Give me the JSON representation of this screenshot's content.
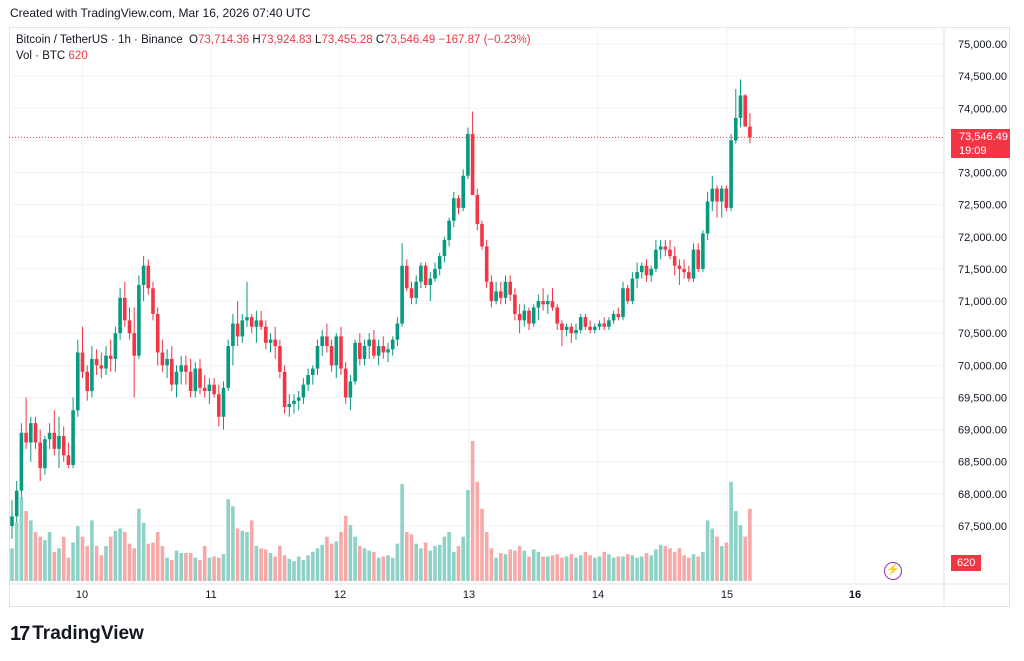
{
  "header": {
    "created_text": "Created with TradingView.com, Mar 16, 2026 07:40 UTC"
  },
  "legend": {
    "symbol": "Bitcoin / TetherUS · 1h · Binance",
    "o_label": "O",
    "o_value": "73,714.36",
    "h_label": "H",
    "h_value": "73,924.83",
    "l_label": "L",
    "l_value": "73,455.28",
    "c_label": "C",
    "c_value": "73,546.49",
    "change": "−167.87 (−0.23%)",
    "vol_label": "Vol · BTC",
    "vol_value": "620"
  },
  "price_tag": {
    "price": "73,546.49",
    "countdown": "19:09"
  },
  "volume_tag": "620",
  "brand": {
    "name": "TradingView",
    "logo": "tradingview-logo"
  },
  "colors": {
    "up": "#089981",
    "down": "#f23645",
    "up_vol": "#8ed1c7",
    "down_vol": "#f7a9a7",
    "grid": "#f0f3fa",
    "axis_text": "#131722"
  },
  "chart_data": {
    "type": "candlestick",
    "symbol": "BTCUSDT",
    "interval": "1h",
    "x_tick_labels": [
      "10",
      "11",
      "12",
      "13",
      "14",
      "15",
      "16"
    ],
    "y_tick_labels": [
      "67,500.00",
      "68,000.00",
      "68,500.00",
      "69,000.00",
      "69,500.00",
      "70,000.00",
      "70,500.00",
      "71,000.00",
      "71,500.00",
      "72,000.00",
      "72,500.00",
      "73,000.00",
      "73,500.00",
      "74,000.00",
      "74,500.00",
      "75,000.00"
    ],
    "ylim": [
      67000,
      75150
    ],
    "grid": true,
    "last_price": 73546.49,
    "ohlcv": [
      {
        "o": 67500,
        "h": 67900,
        "l": 67300,
        "c": 67650,
        "v": 280
      },
      {
        "o": 67650,
        "h": 68200,
        "l": 67550,
        "c": 68050,
        "v": 500
      },
      {
        "o": 68050,
        "h": 69100,
        "l": 67950,
        "c": 68950,
        "v": 720
      },
      {
        "o": 68950,
        "h": 69500,
        "l": 68700,
        "c": 68800,
        "v": 600
      },
      {
        "o": 68800,
        "h": 69200,
        "l": 68500,
        "c": 69100,
        "v": 520
      },
      {
        "o": 69100,
        "h": 69200,
        "l": 68700,
        "c": 68800,
        "v": 420
      },
      {
        "o": 68800,
        "h": 69000,
        "l": 68200,
        "c": 68400,
        "v": 380
      },
      {
        "o": 68400,
        "h": 68900,
        "l": 68300,
        "c": 68850,
        "v": 350
      },
      {
        "o": 68850,
        "h": 69100,
        "l": 68700,
        "c": 68950,
        "v": 420
      },
      {
        "o": 68950,
        "h": 69300,
        "l": 68600,
        "c": 68700,
        "v": 250
      },
      {
        "o": 68700,
        "h": 69200,
        "l": 68400,
        "c": 68900,
        "v": 280
      },
      {
        "o": 68900,
        "h": 69050,
        "l": 68500,
        "c": 68600,
        "v": 380
      },
      {
        "o": 68600,
        "h": 68800,
        "l": 68400,
        "c": 68450,
        "v": 200
      },
      {
        "o": 68450,
        "h": 69500,
        "l": 68400,
        "c": 69300,
        "v": 330
      },
      {
        "o": 69300,
        "h": 70400,
        "l": 69200,
        "c": 70200,
        "v": 470
      },
      {
        "o": 70200,
        "h": 70600,
        "l": 69800,
        "c": 69900,
        "v": 380
      },
      {
        "o": 69900,
        "h": 70000,
        "l": 69450,
        "c": 69600,
        "v": 300
      },
      {
        "o": 69600,
        "h": 70300,
        "l": 69500,
        "c": 70100,
        "v": 520
      },
      {
        "o": 70100,
        "h": 70250,
        "l": 69850,
        "c": 70000,
        "v": 300
      },
      {
        "o": 70000,
        "h": 70200,
        "l": 69800,
        "c": 69950,
        "v": 220
      },
      {
        "o": 69950,
        "h": 70300,
        "l": 69850,
        "c": 70150,
        "v": 300
      },
      {
        "o": 70150,
        "h": 70400,
        "l": 69900,
        "c": 70100,
        "v": 380
      },
      {
        "o": 70100,
        "h": 70600,
        "l": 69900,
        "c": 70500,
        "v": 430
      },
      {
        "o": 70500,
        "h": 71200,
        "l": 70400,
        "c": 71050,
        "v": 450
      },
      {
        "o": 71050,
        "h": 71300,
        "l": 70600,
        "c": 70700,
        "v": 420
      },
      {
        "o": 70700,
        "h": 70900,
        "l": 70400,
        "c": 70500,
        "v": 320
      },
      {
        "o": 70500,
        "h": 70900,
        "l": 69500,
        "c": 70150,
        "v": 280
      },
      {
        "o": 70150,
        "h": 71400,
        "l": 70100,
        "c": 71250,
        "v": 620
      },
      {
        "o": 71250,
        "h": 71700,
        "l": 71000,
        "c": 71550,
        "v": 500
      },
      {
        "o": 71550,
        "h": 71650,
        "l": 71100,
        "c": 71200,
        "v": 320
      },
      {
        "o": 71200,
        "h": 71300,
        "l": 70700,
        "c": 70800,
        "v": 330
      },
      {
        "o": 70800,
        "h": 70900,
        "l": 70000,
        "c": 70200,
        "v": 420
      },
      {
        "o": 70200,
        "h": 70400,
        "l": 69900,
        "c": 70000,
        "v": 300
      },
      {
        "o": 70000,
        "h": 70250,
        "l": 69800,
        "c": 70100,
        "v": 200
      },
      {
        "o": 70100,
        "h": 70300,
        "l": 69600,
        "c": 69700,
        "v": 180
      },
      {
        "o": 69700,
        "h": 70000,
        "l": 69500,
        "c": 69900,
        "v": 260
      },
      {
        "o": 69900,
        "h": 70150,
        "l": 69700,
        "c": 70000,
        "v": 240
      },
      {
        "o": 70000,
        "h": 70150,
        "l": 69700,
        "c": 69900,
        "v": 240
      },
      {
        "o": 69900,
        "h": 70100,
        "l": 69500,
        "c": 69600,
        "v": 240
      },
      {
        "o": 69600,
        "h": 70050,
        "l": 69500,
        "c": 69950,
        "v": 200
      },
      {
        "o": 69950,
        "h": 70100,
        "l": 69550,
        "c": 69650,
        "v": 180
      },
      {
        "o": 69650,
        "h": 69850,
        "l": 69500,
        "c": 69600,
        "v": 300
      },
      {
        "o": 69600,
        "h": 69800,
        "l": 69400,
        "c": 69700,
        "v": 200
      },
      {
        "o": 69700,
        "h": 69800,
        "l": 69500,
        "c": 69550,
        "v": 210
      },
      {
        "o": 69550,
        "h": 69700,
        "l": 69050,
        "c": 69200,
        "v": 200
      },
      {
        "o": 69200,
        "h": 69750,
        "l": 69000,
        "c": 69650,
        "v": 230
      },
      {
        "o": 69650,
        "h": 70400,
        "l": 69600,
        "c": 70300,
        "v": 700
      },
      {
        "o": 70300,
        "h": 70800,
        "l": 70000,
        "c": 70650,
        "v": 640
      },
      {
        "o": 70650,
        "h": 71000,
        "l": 70300,
        "c": 70450,
        "v": 450
      },
      {
        "o": 70450,
        "h": 70800,
        "l": 70350,
        "c": 70700,
        "v": 430
      },
      {
        "o": 70700,
        "h": 71300,
        "l": 70600,
        "c": 70750,
        "v": 420
      },
      {
        "o": 70750,
        "h": 70800,
        "l": 70500,
        "c": 70600,
        "v": 520
      },
      {
        "o": 70600,
        "h": 70850,
        "l": 70350,
        "c": 70700,
        "v": 300
      },
      {
        "o": 70700,
        "h": 70850,
        "l": 70550,
        "c": 70600,
        "v": 280
      },
      {
        "o": 70600,
        "h": 70700,
        "l": 70250,
        "c": 70350,
        "v": 270
      },
      {
        "o": 70350,
        "h": 70500,
        "l": 70200,
        "c": 70400,
        "v": 240
      },
      {
        "o": 70400,
        "h": 70600,
        "l": 70100,
        "c": 70300,
        "v": 210
      },
      {
        "o": 70300,
        "h": 70400,
        "l": 69800,
        "c": 69900,
        "v": 300
      },
      {
        "o": 69900,
        "h": 70000,
        "l": 69250,
        "c": 69350,
        "v": 220
      },
      {
        "o": 69350,
        "h": 69550,
        "l": 69200,
        "c": 69400,
        "v": 190
      },
      {
        "o": 69400,
        "h": 69550,
        "l": 69250,
        "c": 69450,
        "v": 170
      },
      {
        "o": 69450,
        "h": 69600,
        "l": 69300,
        "c": 69500,
        "v": 210
      },
      {
        "o": 69500,
        "h": 69800,
        "l": 69400,
        "c": 69700,
        "v": 180
      },
      {
        "o": 69700,
        "h": 69950,
        "l": 69600,
        "c": 69850,
        "v": 220
      },
      {
        "o": 69850,
        "h": 70000,
        "l": 69700,
        "c": 69950,
        "v": 250
      },
      {
        "o": 69950,
        "h": 70400,
        "l": 69850,
        "c": 70300,
        "v": 280
      },
      {
        "o": 70300,
        "h": 70550,
        "l": 70150,
        "c": 70450,
        "v": 310
      },
      {
        "o": 70450,
        "h": 70650,
        "l": 70200,
        "c": 70300,
        "v": 380
      },
      {
        "o": 70300,
        "h": 70400,
        "l": 69900,
        "c": 70000,
        "v": 320
      },
      {
        "o": 70000,
        "h": 70500,
        "l": 69800,
        "c": 70450,
        "v": 340
      },
      {
        "o": 70450,
        "h": 70600,
        "l": 69850,
        "c": 69950,
        "v": 420
      },
      {
        "o": 69950,
        "h": 70050,
        "l": 69400,
        "c": 69500,
        "v": 560
      },
      {
        "o": 69500,
        "h": 69850,
        "l": 69300,
        "c": 69750,
        "v": 480
      },
      {
        "o": 69750,
        "h": 70400,
        "l": 69700,
        "c": 70350,
        "v": 380
      },
      {
        "o": 70350,
        "h": 70500,
        "l": 70000,
        "c": 70100,
        "v": 300
      },
      {
        "o": 70100,
        "h": 70400,
        "l": 70000,
        "c": 70300,
        "v": 280
      },
      {
        "o": 70300,
        "h": 70500,
        "l": 70100,
        "c": 70400,
        "v": 260
      },
      {
        "o": 70400,
        "h": 70550,
        "l": 70100,
        "c": 70150,
        "v": 250
      },
      {
        "o": 70150,
        "h": 70400,
        "l": 70000,
        "c": 70300,
        "v": 200
      },
      {
        "o": 70300,
        "h": 70450,
        "l": 70100,
        "c": 70200,
        "v": 210
      },
      {
        "o": 70200,
        "h": 70350,
        "l": 70050,
        "c": 70250,
        "v": 220
      },
      {
        "o": 70250,
        "h": 70450,
        "l": 70150,
        "c": 70400,
        "v": 200
      },
      {
        "o": 70400,
        "h": 70750,
        "l": 70300,
        "c": 70650,
        "v": 320
      },
      {
        "o": 70650,
        "h": 71900,
        "l": 70600,
        "c": 71550,
        "v": 830
      },
      {
        "o": 71550,
        "h": 71650,
        "l": 71150,
        "c": 71200,
        "v": 420
      },
      {
        "o": 71200,
        "h": 71300,
        "l": 70950,
        "c": 71050,
        "v": 400
      },
      {
        "o": 71050,
        "h": 71400,
        "l": 70950,
        "c": 71300,
        "v": 320
      },
      {
        "o": 71300,
        "h": 71600,
        "l": 71200,
        "c": 71550,
        "v": 280
      },
      {
        "o": 71550,
        "h": 71600,
        "l": 71200,
        "c": 71250,
        "v": 330
      },
      {
        "o": 71250,
        "h": 71450,
        "l": 71000,
        "c": 71350,
        "v": 260
      },
      {
        "o": 71350,
        "h": 71600,
        "l": 71300,
        "c": 71500,
        "v": 300
      },
      {
        "o": 71500,
        "h": 71750,
        "l": 71400,
        "c": 71700,
        "v": 310
      },
      {
        "o": 71700,
        "h": 72000,
        "l": 71600,
        "c": 71950,
        "v": 380
      },
      {
        "o": 71950,
        "h": 72300,
        "l": 71850,
        "c": 72250,
        "v": 420
      },
      {
        "o": 72250,
        "h": 72700,
        "l": 72150,
        "c": 72600,
        "v": 250
      },
      {
        "o": 72600,
        "h": 72650,
        "l": 72350,
        "c": 72450,
        "v": 300
      },
      {
        "o": 72450,
        "h": 73050,
        "l": 72400,
        "c": 72950,
        "v": 380
      },
      {
        "o": 72950,
        "h": 73700,
        "l": 72900,
        "c": 73600,
        "v": 780
      },
      {
        "o": 73600,
        "h": 73950,
        "l": 72950,
        "c": 72650,
        "v": 1200
      },
      {
        "o": 72650,
        "h": 72750,
        "l": 72100,
        "c": 72200,
        "v": 850
      },
      {
        "o": 72200,
        "h": 72250,
        "l": 71800,
        "c": 71850,
        "v": 620
      },
      {
        "o": 71850,
        "h": 71950,
        "l": 71200,
        "c": 71300,
        "v": 420
      },
      {
        "o": 71300,
        "h": 71400,
        "l": 70900,
        "c": 71000,
        "v": 280
      },
      {
        "o": 71000,
        "h": 71300,
        "l": 70950,
        "c": 71150,
        "v": 200
      },
      {
        "o": 71150,
        "h": 71300,
        "l": 70950,
        "c": 71050,
        "v": 240
      },
      {
        "o": 71050,
        "h": 71400,
        "l": 70950,
        "c": 71300,
        "v": 230
      },
      {
        "o": 71300,
        "h": 71400,
        "l": 71000,
        "c": 71100,
        "v": 270
      },
      {
        "o": 71100,
        "h": 71200,
        "l": 70700,
        "c": 70800,
        "v": 260
      },
      {
        "o": 70800,
        "h": 70950,
        "l": 70500,
        "c": 70700,
        "v": 300
      },
      {
        "o": 70700,
        "h": 70950,
        "l": 70600,
        "c": 70850,
        "v": 260
      },
      {
        "o": 70850,
        "h": 70900,
        "l": 70550,
        "c": 70650,
        "v": 210
      },
      {
        "o": 70650,
        "h": 70950,
        "l": 70600,
        "c": 70900,
        "v": 270
      },
      {
        "o": 70900,
        "h": 71100,
        "l": 70700,
        "c": 71000,
        "v": 250
      },
      {
        "o": 71000,
        "h": 71200,
        "l": 70850,
        "c": 70950,
        "v": 210
      },
      {
        "o": 70950,
        "h": 71100,
        "l": 70800,
        "c": 71000,
        "v": 210
      },
      {
        "o": 71000,
        "h": 71200,
        "l": 70850,
        "c": 70900,
        "v": 220
      },
      {
        "o": 70900,
        "h": 70950,
        "l": 70550,
        "c": 70650,
        "v": 230
      },
      {
        "o": 70650,
        "h": 70700,
        "l": 70300,
        "c": 70550,
        "v": 200
      },
      {
        "o": 70550,
        "h": 70650,
        "l": 70450,
        "c": 70600,
        "v": 210
      },
      {
        "o": 70600,
        "h": 70650,
        "l": 70350,
        "c": 70500,
        "v": 230
      },
      {
        "o": 70500,
        "h": 70650,
        "l": 70400,
        "c": 70550,
        "v": 200
      },
      {
        "o": 70550,
        "h": 70800,
        "l": 70500,
        "c": 70750,
        "v": 220
      },
      {
        "o": 70750,
        "h": 70800,
        "l": 70550,
        "c": 70600,
        "v": 250
      },
      {
        "o": 70600,
        "h": 70700,
        "l": 70500,
        "c": 70550,
        "v": 220
      },
      {
        "o": 70550,
        "h": 70650,
        "l": 70500,
        "c": 70600,
        "v": 200
      },
      {
        "o": 70600,
        "h": 70700,
        "l": 70550,
        "c": 70650,
        "v": 210
      },
      {
        "o": 70650,
        "h": 70750,
        "l": 70550,
        "c": 70600,
        "v": 250
      },
      {
        "o": 70600,
        "h": 70750,
        "l": 70550,
        "c": 70700,
        "v": 230
      },
      {
        "o": 70700,
        "h": 70850,
        "l": 70650,
        "c": 70800,
        "v": 200
      },
      {
        "o": 70800,
        "h": 70900,
        "l": 70700,
        "c": 70750,
        "v": 210
      },
      {
        "o": 70750,
        "h": 71300,
        "l": 70700,
        "c": 71200,
        "v": 210
      },
      {
        "o": 71200,
        "h": 71250,
        "l": 70950,
        "c": 71000,
        "v": 230
      },
      {
        "o": 71000,
        "h": 71450,
        "l": 70950,
        "c": 71350,
        "v": 220
      },
      {
        "o": 71350,
        "h": 71600,
        "l": 71200,
        "c": 71450,
        "v": 200
      },
      {
        "o": 71450,
        "h": 71600,
        "l": 71350,
        "c": 71550,
        "v": 210
      },
      {
        "o": 71550,
        "h": 71650,
        "l": 71300,
        "c": 71400,
        "v": 240
      },
      {
        "o": 71400,
        "h": 71550,
        "l": 71300,
        "c": 71500,
        "v": 220
      },
      {
        "o": 71500,
        "h": 71950,
        "l": 71450,
        "c": 71800,
        "v": 270
      },
      {
        "o": 71800,
        "h": 71950,
        "l": 71650,
        "c": 71850,
        "v": 310
      },
      {
        "o": 71850,
        "h": 71950,
        "l": 71700,
        "c": 71800,
        "v": 300
      },
      {
        "o": 71800,
        "h": 71950,
        "l": 71650,
        "c": 71700,
        "v": 280
      },
      {
        "o": 71700,
        "h": 71850,
        "l": 71400,
        "c": 71550,
        "v": 250
      },
      {
        "o": 71550,
        "h": 71650,
        "l": 71250,
        "c": 71500,
        "v": 280
      },
      {
        "o": 71500,
        "h": 71650,
        "l": 71350,
        "c": 71450,
        "v": 220
      },
      {
        "o": 71450,
        "h": 71550,
        "l": 71300,
        "c": 71350,
        "v": 200
      },
      {
        "o": 71350,
        "h": 71900,
        "l": 71300,
        "c": 71800,
        "v": 230
      },
      {
        "o": 71800,
        "h": 71900,
        "l": 71450,
        "c": 71500,
        "v": 210
      },
      {
        "o": 71500,
        "h": 72100,
        "l": 71450,
        "c": 72050,
        "v": 250
      },
      {
        "o": 72050,
        "h": 72700,
        "l": 71950,
        "c": 72550,
        "v": 520
      },
      {
        "o": 72550,
        "h": 72950,
        "l": 72400,
        "c": 72750,
        "v": 450
      },
      {
        "o": 72750,
        "h": 72800,
        "l": 72300,
        "c": 72550,
        "v": 380
      },
      {
        "o": 72550,
        "h": 72800,
        "l": 72300,
        "c": 72750,
        "v": 300
      },
      {
        "o": 72750,
        "h": 72800,
        "l": 72400,
        "c": 72450,
        "v": 330
      },
      {
        "o": 72450,
        "h": 73600,
        "l": 72400,
        "c": 73500,
        "v": 850
      },
      {
        "o": 73500,
        "h": 74300,
        "l": 73450,
        "c": 73850,
        "v": 600
      },
      {
        "o": 73850,
        "h": 74450,
        "l": 73700,
        "c": 74200,
        "v": 480
      },
      {
        "o": 74200,
        "h": 74220,
        "l": 73750,
        "c": 73714.36,
        "v": 380
      },
      {
        "o": 73714.36,
        "h": 73924.83,
        "l": 73455.28,
        "c": 73546.49,
        "v": 620
      }
    ]
  }
}
